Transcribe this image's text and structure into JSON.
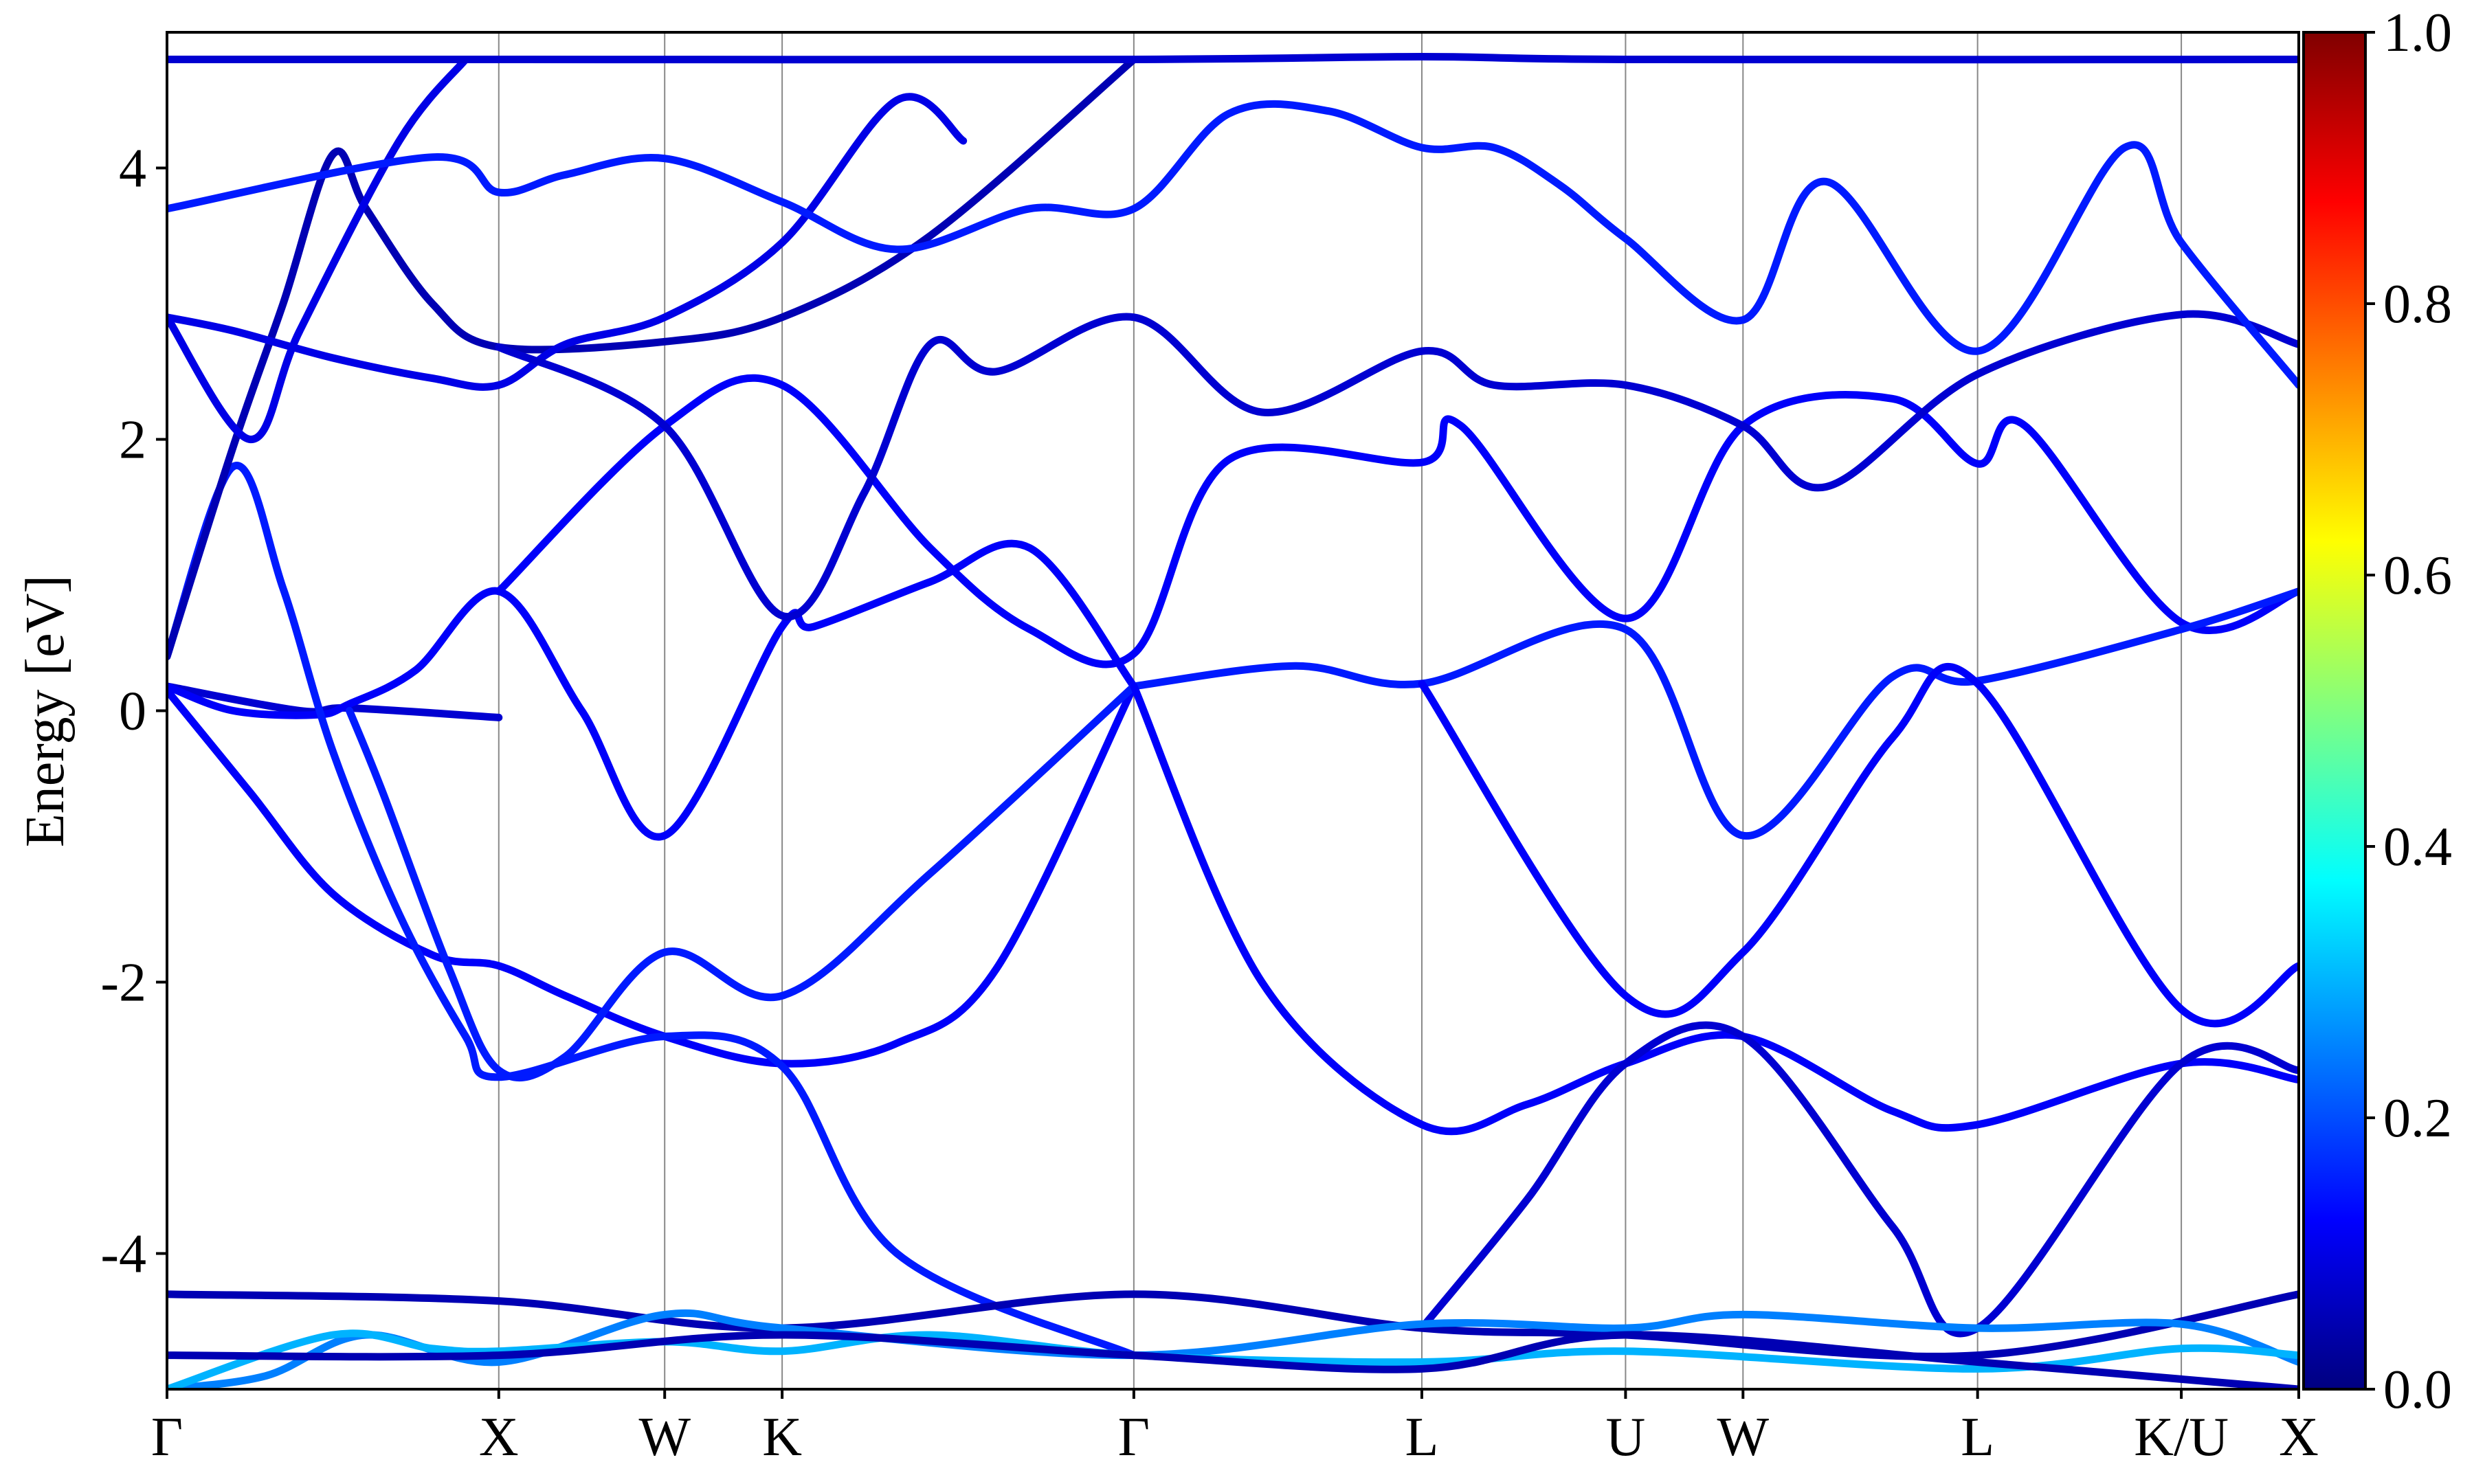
{
  "chart_data": {
    "type": "line",
    "title": "",
    "ylabel": "Energy [eV]",
    "xlabel": "",
    "ylim": [
      -5,
      5
    ],
    "grid": "vertical lines at high-symmetry points",
    "yticks": [
      {
        "value": 4,
        "label": "4"
      },
      {
        "value": 2,
        "label": "2"
      },
      {
        "value": 0,
        "label": "0"
      },
      {
        "value": -2,
        "label": "-2"
      },
      {
        "value": -4,
        "label": "-4"
      }
    ],
    "kpath_labels": [
      "Γ",
      "X",
      "W",
      "K",
      "Γ",
      "L",
      "U",
      "W",
      "L",
      "K/U",
      "X"
    ],
    "kpath_positions": [
      0,
      1.0,
      1.5,
      1.854,
      2.914,
      3.782,
      4.396,
      4.75,
      5.457,
      6.071,
      6.425
    ],
    "colorbar": {
      "colormap": "jet",
      "range": [
        0.0,
        1.0
      ],
      "ticks": [
        "0.0",
        "0.2",
        "0.4",
        "0.6",
        "0.8",
        "1.0"
      ],
      "colors": [
        "#000080",
        "#0000ff",
        "#0080ff",
        "#00ffff",
        "#80ff80",
        "#ffff00",
        "#ff8000",
        "#ff0000",
        "#800000"
      ]
    },
    "series": [
      {
        "weight": 0.08,
        "points": [
          [
            0,
            0.18
          ],
          [
            0.4,
            0.0
          ],
          [
            0.55,
            0.02
          ],
          [
            1.0,
            -0.05
          ]
        ]
      },
      {
        "weight": 0.12,
        "points": [
          [
            0,
            0.15
          ],
          [
            0.25,
            -0.6
          ],
          [
            0.5,
            -1.35
          ],
          [
            0.8,
            -1.8
          ],
          [
            1.0,
            -1.88
          ],
          [
            1.2,
            -2.1
          ],
          [
            1.5,
            -2.4
          ],
          [
            1.854,
            -2.6
          ],
          [
            2.2,
            -2.45
          ],
          [
            2.5,
            -1.9
          ],
          [
            2.914,
            0.18
          ]
        ]
      },
      {
        "weight": 0.12,
        "points": [
          [
            0,
            0.18
          ],
          [
            0.2,
            0.0
          ],
          [
            0.45,
            -0.03
          ],
          [
            0.55,
            0.05
          ],
          [
            0.75,
            0.3
          ],
          [
            1.0,
            0.88
          ],
          [
            1.25,
            0.0
          ],
          [
            1.5,
            -0.92
          ],
          [
            1.854,
            0.62
          ],
          [
            1.95,
            0.62
          ],
          [
            2.3,
            0.95
          ],
          [
            2.6,
            1.2
          ],
          [
            2.914,
            0.18
          ]
        ]
      },
      {
        "weight": 0.15,
        "points": [
          [
            0.55,
            0.0
          ],
          [
            0.65,
            -0.6
          ],
          [
            0.85,
            -1.9
          ],
          [
            1.0,
            -2.65
          ],
          [
            1.2,
            -2.55
          ],
          [
            1.5,
            -1.78
          ],
          [
            1.854,
            -2.1
          ],
          [
            2.3,
            -1.2
          ],
          [
            2.914,
            0.18
          ]
        ]
      },
      {
        "weight": 0.15,
        "points": [
          [
            0,
            0.4
          ],
          [
            0.2,
            1.8
          ],
          [
            0.35,
            0.9
          ],
          [
            0.5,
            -0.3
          ],
          [
            0.7,
            -1.5
          ],
          [
            0.9,
            -2.4
          ],
          [
            1.0,
            -2.7
          ],
          [
            1.5,
            -2.4
          ],
          [
            1.854,
            -2.62
          ],
          [
            2.2,
            -4.0
          ],
          [
            2.914,
            -4.75
          ]
        ]
      },
      {
        "weight": 0.05,
        "points": [
          [
            0,
            0.4
          ],
          [
            0.2,
            1.95
          ],
          [
            0.35,
            3.0
          ],
          [
            0.5,
            4.1
          ],
          [
            0.6,
            3.7
          ],
          [
            0.8,
            3.0
          ],
          [
            1.0,
            2.68
          ],
          [
            1.5,
            2.72
          ],
          [
            1.854,
            2.9
          ],
          [
            2.3,
            3.5
          ],
          [
            2.914,
            4.8
          ]
        ]
      },
      {
        "weight": 0.1,
        "points": [
          [
            0,
            2.9
          ],
          [
            0.2,
            2.8
          ],
          [
            0.5,
            2.6
          ],
          [
            0.8,
            2.45
          ],
          [
            1.0,
            2.4
          ],
          [
            1.2,
            2.7
          ],
          [
            1.5,
            2.9
          ],
          [
            1.854,
            3.45
          ],
          [
            2.2,
            4.5
          ],
          [
            2.4,
            4.2
          ]
        ]
      },
      {
        "weight": 0.1,
        "points": [
          [
            0,
            2.9
          ],
          [
            0.25,
            2.0
          ],
          [
            0.4,
            2.8
          ],
          [
            0.7,
            4.2
          ],
          [
            0.9,
            4.8
          ]
        ]
      },
      {
        "weight": 0.12,
        "points": [
          [
            1.0,
            0.88
          ],
          [
            1.5,
            2.1
          ],
          [
            1.854,
            2.4
          ],
          [
            2.3,
            1.2
          ],
          [
            2.6,
            0.6
          ],
          [
            2.914,
            0.42
          ],
          [
            3.2,
            1.85
          ],
          [
            3.782,
            1.83
          ],
          [
            3.9,
            2.1
          ],
          [
            4.396,
            0.68
          ],
          [
            4.75,
            2.1
          ],
          [
            5.2,
            2.3
          ],
          [
            5.457,
            1.82
          ],
          [
            5.6,
            2.1
          ],
          [
            6.071,
            0.65
          ],
          [
            6.425,
            0.88
          ]
        ]
      },
      {
        "weight": 0.08,
        "points": [
          [
            1.0,
            2.68
          ],
          [
            1.5,
            2.1
          ],
          [
            1.854,
            0.7
          ],
          [
            2.1,
            1.6
          ],
          [
            2.3,
            2.7
          ],
          [
            2.5,
            2.5
          ],
          [
            2.914,
            2.9
          ],
          [
            3.3,
            2.2
          ],
          [
            3.782,
            2.65
          ],
          [
            4.0,
            2.4
          ],
          [
            4.396,
            2.4
          ],
          [
            4.75,
            2.1
          ],
          [
            5.0,
            1.65
          ],
          [
            5.457,
            2.48
          ],
          [
            6.071,
            2.92
          ],
          [
            6.425,
            2.7
          ]
        ]
      },
      {
        "weight": 0.08,
        "points": [
          [
            0,
            4.8
          ],
          [
            1.0,
            4.8
          ],
          [
            2.914,
            4.8
          ],
          [
            3.782,
            4.82
          ],
          [
            4.396,
            4.8
          ],
          [
            6.425,
            4.8
          ]
        ]
      },
      {
        "weight": 0.15,
        "points": [
          [
            0,
            3.7
          ],
          [
            0.8,
            4.08
          ],
          [
            1.0,
            3.82
          ],
          [
            1.2,
            3.95
          ],
          [
            1.5,
            4.07
          ],
          [
            1.854,
            3.75
          ],
          [
            2.2,
            3.4
          ],
          [
            2.6,
            3.7
          ],
          [
            2.914,
            3.7
          ],
          [
            3.2,
            4.4
          ],
          [
            3.5,
            4.42
          ],
          [
            3.782,
            4.15
          ],
          [
            4.0,
            4.15
          ],
          [
            4.2,
            3.87
          ],
          [
            4.396,
            3.48
          ],
          [
            4.75,
            2.88
          ],
          [
            5.0,
            3.9
          ],
          [
            5.457,
            2.65
          ],
          [
            5.9,
            4.15
          ],
          [
            6.071,
            3.45
          ],
          [
            6.425,
            2.4
          ]
        ]
      },
      {
        "weight": 0.15,
        "points": [
          [
            2.914,
            0.18
          ],
          [
            3.4,
            0.33
          ],
          [
            3.782,
            0.2
          ],
          [
            4.396,
            0.6
          ],
          [
            4.75,
            -0.92
          ],
          [
            5.2,
            0.25
          ],
          [
            5.457,
            0.22
          ],
          [
            6.071,
            0.6
          ],
          [
            6.425,
            0.88
          ]
        ]
      },
      {
        "weight": 0.12,
        "points": [
          [
            2.914,
            0.18
          ],
          [
            3.3,
            -2.0
          ],
          [
            3.782,
            -3.05
          ],
          [
            4.1,
            -2.9
          ],
          [
            4.396,
            -2.6
          ],
          [
            4.75,
            -2.4
          ],
          [
            5.2,
            -2.95
          ],
          [
            5.457,
            -3.05
          ],
          [
            6.071,
            -2.6
          ],
          [
            6.425,
            -2.72
          ]
        ]
      },
      {
        "weight": 0.12,
        "points": [
          [
            3.782,
            0.2
          ],
          [
            4.396,
            -2.1
          ],
          [
            4.75,
            -1.78
          ],
          [
            5.2,
            -0.2
          ],
          [
            5.457,
            0.2
          ],
          [
            6.071,
            -2.2
          ],
          [
            6.425,
            -1.88
          ]
        ]
      },
      {
        "weight": 0.08,
        "points": [
          [
            3.782,
            -4.55
          ],
          [
            4.1,
            -3.6
          ],
          [
            4.396,
            -2.6
          ],
          [
            4.75,
            -2.4
          ],
          [
            5.2,
            -3.8
          ],
          [
            5.457,
            -4.55
          ],
          [
            6.071,
            -2.6
          ],
          [
            6.425,
            -2.65
          ]
        ]
      },
      {
        "weight": 0.05,
        "points": [
          [
            0,
            -4.3
          ],
          [
            1.0,
            -4.35
          ],
          [
            1.854,
            -4.55
          ],
          [
            2.914,
            -4.3
          ],
          [
            3.782,
            -4.55
          ],
          [
            4.396,
            -4.6
          ],
          [
            5.457,
            -4.75
          ],
          [
            6.425,
            -4.3
          ]
        ]
      },
      {
        "weight": 0.25,
        "points": [
          [
            0,
            -5.0
          ],
          [
            0.3,
            -4.9
          ],
          [
            0.6,
            -4.6
          ],
          [
            1.0,
            -4.8
          ],
          [
            1.5,
            -4.45
          ],
          [
            1.854,
            -4.55
          ],
          [
            2.914,
            -4.75
          ],
          [
            3.782,
            -4.52
          ],
          [
            4.396,
            -4.55
          ],
          [
            4.75,
            -4.45
          ],
          [
            5.457,
            -4.55
          ],
          [
            6.071,
            -4.52
          ],
          [
            6.425,
            -4.8
          ]
        ]
      },
      {
        "weight": 0.3,
        "points": [
          [
            0,
            -5.0
          ],
          [
            0.5,
            -4.6
          ],
          [
            0.8,
            -4.7
          ],
          [
            1.0,
            -4.72
          ],
          [
            1.5,
            -4.65
          ],
          [
            1.854,
            -4.72
          ],
          [
            2.3,
            -4.6
          ],
          [
            2.914,
            -4.75
          ],
          [
            3.782,
            -4.8
          ],
          [
            4.396,
            -4.72
          ],
          [
            5.457,
            -4.85
          ],
          [
            6.071,
            -4.7
          ],
          [
            6.425,
            -4.75
          ]
        ]
      },
      {
        "weight": 0.05,
        "points": [
          [
            0,
            -4.75
          ],
          [
            1.0,
            -4.75
          ],
          [
            1.854,
            -4.6
          ],
          [
            2.914,
            -4.75
          ],
          [
            3.782,
            -4.85
          ],
          [
            4.396,
            -4.6
          ],
          [
            5.457,
            -4.8
          ],
          [
            6.425,
            -5.0
          ]
        ]
      }
    ]
  }
}
